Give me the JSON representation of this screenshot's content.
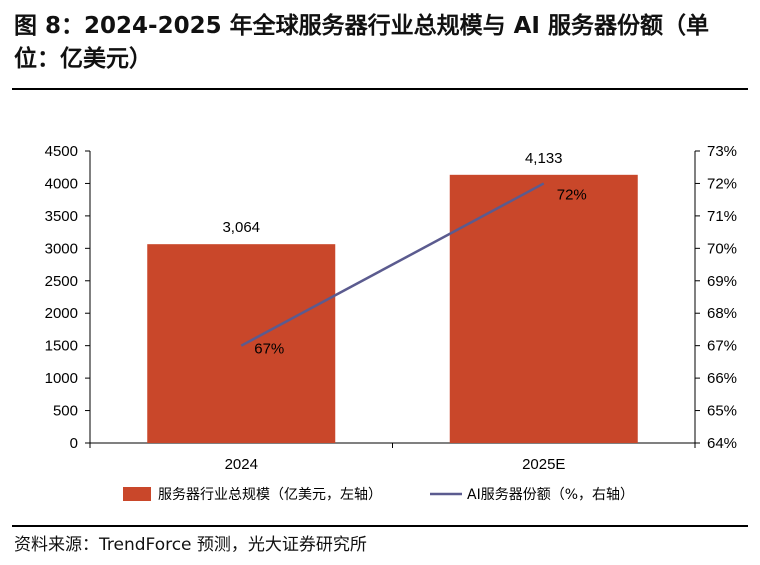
{
  "header": {
    "title": "图 8：2024-2025 年全球服务器行业总规模与 AI 服务器份额（单位：亿美元）"
  },
  "footer": {
    "source": "资料来源：TrendForce 预测，光大证券研究所"
  },
  "colors": {
    "bar": "#c9472a",
    "line": "#5b5b8f",
    "axis": "#000000"
  },
  "chart_data": {
    "type": "bar",
    "categories": [
      "2024",
      "2025E"
    ],
    "series": [
      {
        "name": "服务器行业总规模（亿美元，左轴）",
        "type": "bar",
        "axis": "left",
        "values": [
          3064,
          4133
        ],
        "labels": [
          "3,064",
          "4,133"
        ]
      },
      {
        "name": "AI服务器份额（%，右轴）",
        "type": "line",
        "axis": "right",
        "values": [
          67,
          72
        ],
        "labels": [
          "67%",
          "72%"
        ]
      }
    ],
    "y_left": {
      "min": 0,
      "max": 4500,
      "step": 500,
      "ticks": [
        "0",
        "500",
        "1000",
        "1500",
        "2000",
        "2500",
        "3000",
        "3500",
        "4000",
        "4500"
      ]
    },
    "y_right": {
      "min": 64,
      "max": 73,
      "step": 1,
      "ticks": [
        "64%",
        "65%",
        "66%",
        "67%",
        "68%",
        "69%",
        "70%",
        "71%",
        "72%",
        "73%"
      ]
    },
    "legend": [
      {
        "label": "服务器行业总规模（亿美元，左轴）",
        "kind": "bar"
      },
      {
        "label": "AI服务器份额（%，右轴）",
        "kind": "line"
      }
    ],
    "legend_position": "bottom",
    "grid": false
  }
}
